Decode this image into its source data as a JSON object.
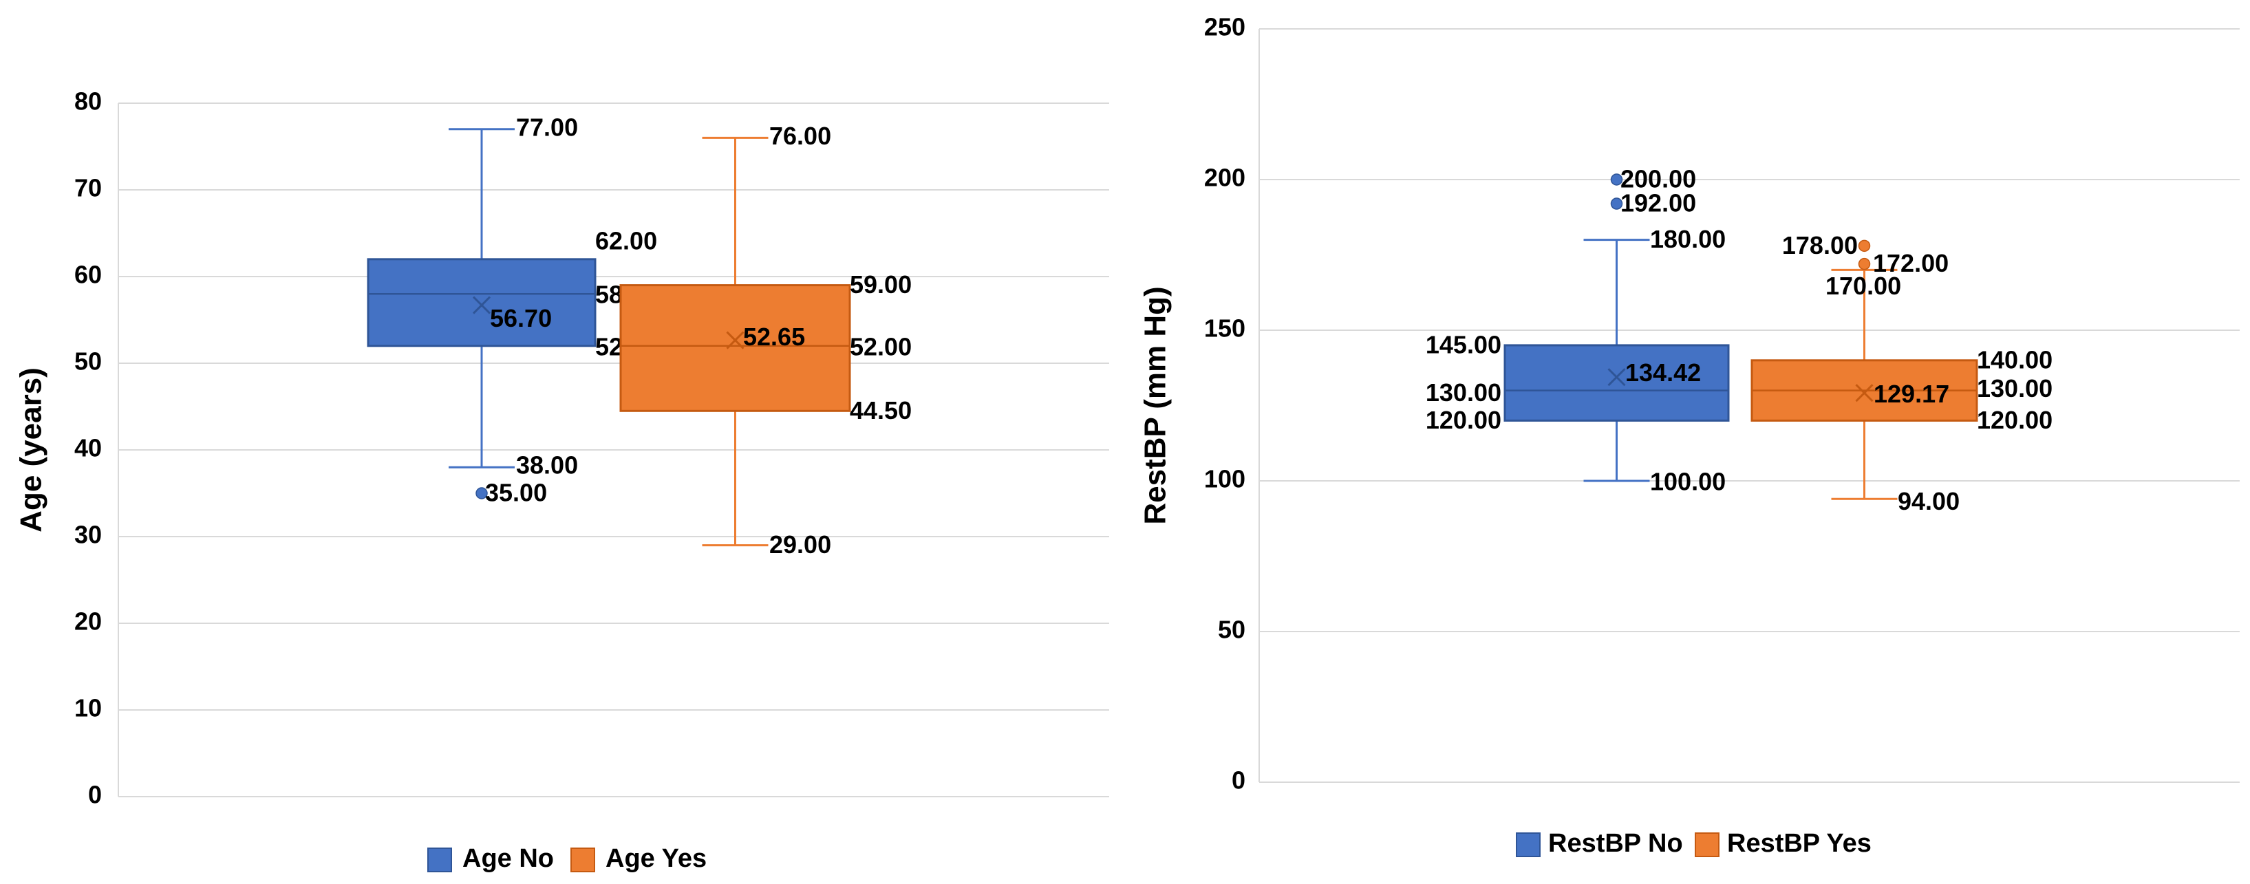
{
  "colors": {
    "no_fill": "#4472c4",
    "no_stroke": "#2f5597",
    "yes_fill": "#ed7d31",
    "yes_stroke": "#c55a11",
    "grid": "#d9d9d9"
  },
  "chart_data": [
    {
      "type": "box",
      "title": "",
      "ylabel": "Age (years)",
      "ylim": [
        0,
        80
      ],
      "yticks": [
        0,
        10,
        20,
        30,
        40,
        50,
        60,
        70,
        80
      ],
      "grid": true,
      "legend": "bottom",
      "series": [
        {
          "name": "Age No",
          "color": "no",
          "min": 38.0,
          "q1": 52.0,
          "median": 58.0,
          "q3": 62.0,
          "max": 77.0,
          "mean": 56.7,
          "outliers": [
            35.0
          ],
          "labels": {
            "max": "77.00",
            "q3": "62.00",
            "median": "58.00",
            "q1": "52.00",
            "min": "38.00",
            "mean": "56.70",
            "outliers": [
              "35.00"
            ]
          }
        },
        {
          "name": "Age Yes",
          "color": "yes",
          "min": 29.0,
          "q1": 44.5,
          "median": 52.0,
          "q3": 59.0,
          "max": 76.0,
          "mean": 52.65,
          "outliers": [],
          "labels": {
            "max": "76.00",
            "q3": "59.00",
            "median": "52.00",
            "q1": "44.50",
            "min": "29.00",
            "mean": "52.65",
            "outliers": []
          }
        }
      ]
    },
    {
      "type": "box",
      "title": "",
      "ylabel": "RestBP (mm Hg)",
      "ylim": [
        0,
        250
      ],
      "yticks": [
        0,
        50,
        100,
        150,
        200,
        250
      ],
      "grid": true,
      "legend": "bottom",
      "series": [
        {
          "name": "RestBP No",
          "color": "no",
          "min": 100.0,
          "q1": 120.0,
          "median": 130.0,
          "q3": 145.0,
          "max": 180.0,
          "mean": 134.42,
          "outliers": [
            192.0,
            200.0
          ],
          "labels": {
            "max": "180.00",
            "q3": "145.00",
            "median": "130.00",
            "q1": "120.00",
            "min": "100.00",
            "mean": "134.42",
            "outliers": [
              "192.00",
              "200.00"
            ]
          }
        },
        {
          "name": "RestBP Yes",
          "color": "yes",
          "min": 94.0,
          "q1": 120.0,
          "median": 130.0,
          "q3": 140.0,
          "max": 170.0,
          "mean": 129.17,
          "outliers": [
            172.0,
            178.0
          ],
          "labels": {
            "max": "170.00",
            "q3": "140.00",
            "median": "130.00",
            "q1": "120.00",
            "min": "94.00",
            "mean": "129.17",
            "outliers": [
              "172.00",
              "178.00"
            ]
          }
        }
      ]
    }
  ]
}
